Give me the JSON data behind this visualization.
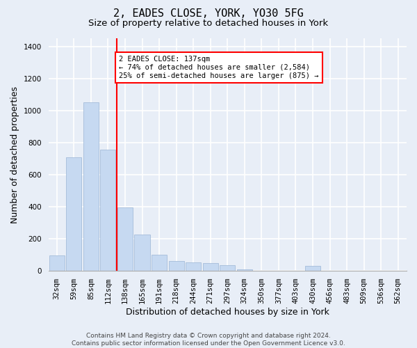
{
  "title": "2, EADES CLOSE, YORK, YO30 5FG",
  "subtitle": "Size of property relative to detached houses in York",
  "xlabel": "Distribution of detached houses by size in York",
  "ylabel": "Number of detached properties",
  "bar_color": "#c6d9f1",
  "bar_edge_color": "#9ab4d4",
  "categories": [
    "32sqm",
    "59sqm",
    "85sqm",
    "112sqm",
    "138sqm",
    "165sqm",
    "191sqm",
    "218sqm",
    "244sqm",
    "271sqm",
    "297sqm",
    "324sqm",
    "350sqm",
    "377sqm",
    "403sqm",
    "430sqm",
    "456sqm",
    "483sqm",
    "509sqm",
    "536sqm",
    "562sqm"
  ],
  "values": [
    95,
    710,
    1050,
    755,
    395,
    225,
    100,
    60,
    55,
    50,
    35,
    10,
    0,
    0,
    0,
    30,
    0,
    0,
    0,
    0,
    0
  ],
  "ylim": [
    0,
    1450
  ],
  "yticks": [
    0,
    200,
    400,
    600,
    800,
    1000,
    1200,
    1400
  ],
  "annotation_text": "2 EADES CLOSE: 137sqm\n← 74% of detached houses are smaller (2,584)\n25% of semi-detached houses are larger (875) →",
  "annotation_box_color": "white",
  "annotation_box_edge_color": "red",
  "vline_color": "red",
  "vline_pos": 3.5,
  "background_color": "#e8eef7",
  "plot_bg_color": "#e8eef7",
  "footer_text": "Contains HM Land Registry data © Crown copyright and database right 2024.\nContains public sector information licensed under the Open Government Licence v3.0.",
  "grid_color": "white",
  "title_fontsize": 11,
  "subtitle_fontsize": 9.5,
  "tick_fontsize": 7.5,
  "ylabel_fontsize": 9,
  "xlabel_fontsize": 9,
  "footer_fontsize": 6.5,
  "annot_fontsize": 7.5
}
